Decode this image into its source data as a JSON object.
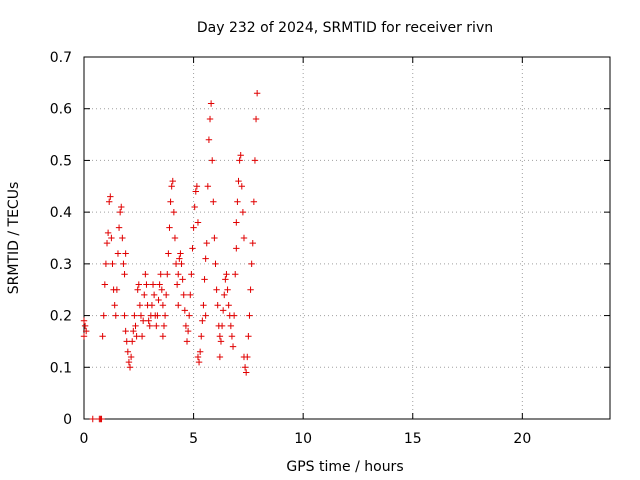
{
  "chart_data": {
    "type": "scatter",
    "title": "Day 232 of 2024, SRMTID for receiver rivn",
    "xlabel": "GPS time / hours",
    "ylabel": "SRMTID / TECUs",
    "xlim": [
      0,
      24
    ],
    "ylim": [
      0,
      0.7
    ],
    "xticks": [
      0,
      5,
      10,
      15,
      20
    ],
    "yticks": [
      0,
      0.1,
      0.2,
      0.3,
      0.4,
      0.5,
      0.6,
      0.7
    ],
    "grid": true,
    "marker": "+",
    "color": "#e00000",
    "series": [
      {
        "name": "SRMTID",
        "x": [
          0.0,
          0.0,
          0.05,
          0.1,
          0.4,
          0.7,
          0.75,
          0.8,
          0.85,
          0.9,
          0.95,
          1.0,
          1.05,
          1.1,
          1.15,
          1.2,
          1.25,
          1.3,
          1.35,
          1.4,
          1.45,
          1.5,
          1.55,
          1.6,
          1.65,
          1.7,
          1.75,
          1.8,
          1.85,
          1.9,
          1.85,
          1.9,
          1.95,
          2.0,
          2.05,
          2.1,
          2.15,
          2.2,
          2.25,
          2.3,
          2.35,
          2.4,
          2.45,
          2.5,
          2.55,
          2.6,
          2.65,
          2.7,
          2.75,
          2.8,
          2.85,
          2.9,
          2.95,
          3.0,
          3.05,
          3.1,
          3.15,
          3.2,
          3.25,
          3.3,
          3.35,
          3.4,
          3.45,
          3.5,
          3.55,
          3.6,
          3.6,
          3.65,
          3.7,
          3.75,
          3.8,
          3.85,
          3.9,
          3.95,
          4.0,
          4.05,
          4.1,
          4.15,
          4.2,
          4.25,
          4.3,
          4.3,
          4.35,
          4.4,
          4.45,
          4.5,
          4.55,
          4.6,
          4.65,
          4.7,
          4.75,
          4.8,
          4.85,
          4.9,
          4.95,
          5.0,
          5.05,
          5.1,
          5.15,
          5.2,
          5.2,
          5.25,
          5.3,
          5.35,
          5.4,
          5.45,
          5.5,
          5.55,
          5.55,
          5.6,
          5.65,
          5.7,
          5.75,
          5.8,
          5.85,
          5.9,
          5.95,
          6.0,
          6.05,
          6.1,
          6.15,
          6.2,
          6.2,
          6.25,
          6.3,
          6.35,
          6.4,
          6.45,
          6.5,
          6.55,
          6.6,
          6.65,
          6.7,
          6.75,
          6.8,
          6.85,
          6.9,
          6.95,
          6.95,
          7.0,
          7.05,
          7.1,
          7.15,
          7.2,
          7.25,
          7.3,
          7.3,
          7.35,
          7.4,
          7.45,
          7.5,
          7.55,
          7.6,
          7.65,
          7.7,
          7.75,
          7.8,
          7.85,
          7.9
        ],
        "y": [
          0.16,
          0.19,
          0.18,
          0.17,
          0.0,
          0.0,
          0.0,
          0.0,
          0.16,
          0.2,
          0.26,
          0.3,
          0.34,
          0.36,
          0.42,
          0.43,
          0.35,
          0.3,
          0.25,
          0.22,
          0.2,
          0.25,
          0.32,
          0.37,
          0.4,
          0.41,
          0.35,
          0.3,
          0.28,
          0.32,
          0.2,
          0.17,
          0.15,
          0.13,
          0.11,
          0.1,
          0.12,
          0.15,
          0.17,
          0.2,
          0.18,
          0.16,
          0.25,
          0.26,
          0.22,
          0.2,
          0.16,
          0.19,
          0.24,
          0.28,
          0.26,
          0.22,
          0.19,
          0.18,
          0.2,
          0.22,
          0.26,
          0.24,
          0.2,
          0.18,
          0.2,
          0.23,
          0.26,
          0.28,
          0.25,
          0.22,
          0.16,
          0.18,
          0.2,
          0.24,
          0.28,
          0.32,
          0.37,
          0.42,
          0.45,
          0.46,
          0.4,
          0.35,
          0.3,
          0.26,
          0.22,
          0.28,
          0.31,
          0.32,
          0.3,
          0.27,
          0.24,
          0.21,
          0.18,
          0.15,
          0.17,
          0.2,
          0.24,
          0.28,
          0.33,
          0.37,
          0.41,
          0.44,
          0.45,
          0.38,
          0.12,
          0.11,
          0.13,
          0.16,
          0.19,
          0.22,
          0.27,
          0.31,
          0.2,
          0.34,
          0.45,
          0.54,
          0.58,
          0.61,
          0.5,
          0.42,
          0.35,
          0.3,
          0.25,
          0.22,
          0.18,
          0.16,
          0.12,
          0.15,
          0.18,
          0.21,
          0.24,
          0.27,
          0.28,
          0.25,
          0.22,
          0.2,
          0.18,
          0.16,
          0.14,
          0.2,
          0.28,
          0.33,
          0.38,
          0.42,
          0.46,
          0.5,
          0.51,
          0.45,
          0.4,
          0.35,
          0.12,
          0.1,
          0.09,
          0.12,
          0.16,
          0.2,
          0.25,
          0.3,
          0.34,
          0.42,
          0.5,
          0.58,
          0.63
        ]
      }
    ]
  }
}
